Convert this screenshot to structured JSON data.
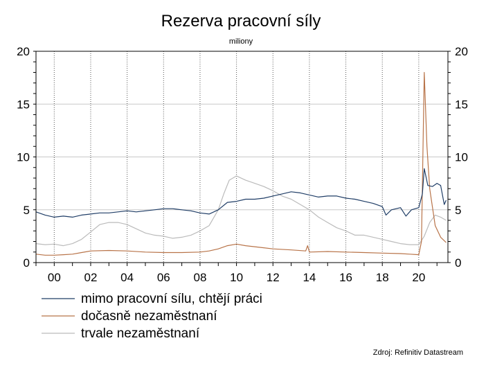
{
  "chart_data": {
    "type": "line",
    "title": "Rezerva pracovní síly",
    "subtitle": "miliony",
    "source": "Zdroj: Refinitiv Datastream",
    "xlim": [
      1999.0,
      2021.6
    ],
    "ylim": [
      0,
      20
    ],
    "y_ticks": [
      0,
      5,
      10,
      15,
      20
    ],
    "y_tick_labels": [
      "0",
      "5",
      "10",
      "15",
      "20"
    ],
    "x_ticks": [
      2000,
      2002,
      2004,
      2006,
      2008,
      2010,
      2012,
      2014,
      2016,
      2018,
      2020
    ],
    "x_tick_labels": [
      "00",
      "02",
      "04",
      "06",
      "08",
      "10",
      "12",
      "14",
      "16",
      "18",
      "20"
    ],
    "grid": {
      "horizontal": true,
      "vertical_dotted": true
    },
    "legend_position": "bottom-left",
    "series": [
      {
        "name": "mimo pracovní sílu, chtějí práci",
        "color": "#1f3d66",
        "x": [
          1999.0,
          1999.5,
          2000.0,
          2000.5,
          2001.0,
          2001.5,
          2002.0,
          2002.5,
          2003.0,
          2003.5,
          2004.0,
          2004.5,
          2005.0,
          2005.5,
          2006.0,
          2006.5,
          2007.0,
          2007.5,
          2008.0,
          2008.5,
          2009.0,
          2009.5,
          2010.0,
          2010.5,
          2011.0,
          2011.5,
          2012.0,
          2012.5,
          2013.0,
          2013.5,
          2014.0,
          2014.5,
          2015.0,
          2015.5,
          2016.0,
          2016.5,
          2017.0,
          2017.5,
          2018.0,
          2018.2,
          2018.5,
          2019.0,
          2019.3,
          2019.6,
          2020.0,
          2020.2,
          2020.3,
          2020.5,
          2020.75,
          2021.0,
          2021.2,
          2021.4,
          2021.5
        ],
        "values": [
          4.8,
          4.5,
          4.3,
          4.4,
          4.3,
          4.5,
          4.6,
          4.7,
          4.7,
          4.8,
          4.9,
          4.8,
          4.9,
          5.0,
          5.1,
          5.1,
          5.0,
          4.9,
          4.7,
          4.6,
          5.0,
          5.7,
          5.8,
          6.0,
          6.0,
          6.1,
          6.3,
          6.5,
          6.7,
          6.6,
          6.4,
          6.2,
          6.3,
          6.3,
          6.1,
          6.0,
          5.8,
          5.6,
          5.3,
          4.5,
          5.0,
          5.2,
          4.4,
          5.0,
          5.2,
          6.5,
          8.9,
          7.3,
          7.2,
          7.5,
          7.3,
          5.5,
          5.9
        ]
      },
      {
        "name": "dočasně nezaměstnaní",
        "color": "#b87348",
        "x": [
          1999.0,
          1999.5,
          2000.0,
          2000.5,
          2001.0,
          2001.5,
          2002.0,
          2003.0,
          2004.0,
          2005.0,
          2006.0,
          2007.0,
          2008.0,
          2008.5,
          2009.0,
          2009.5,
          2010.0,
          2010.5,
          2011.0,
          2012.0,
          2013.0,
          2013.8,
          2013.9,
          2014.0,
          2015.0,
          2016.0,
          2017.0,
          2018.0,
          2019.0,
          2019.5,
          2020.0,
          2020.15,
          2020.3,
          2020.45,
          2020.6,
          2020.9,
          2021.2,
          2021.5
        ],
        "values": [
          0.8,
          0.7,
          0.7,
          0.75,
          0.8,
          0.95,
          1.1,
          1.15,
          1.1,
          1.0,
          0.95,
          0.95,
          1.0,
          1.1,
          1.3,
          1.6,
          1.75,
          1.6,
          1.5,
          1.3,
          1.2,
          1.1,
          1.6,
          1.0,
          1.05,
          1.0,
          0.95,
          0.9,
          0.85,
          0.8,
          0.75,
          2.0,
          18.0,
          11.0,
          7.0,
          3.5,
          2.4,
          1.9
        ]
      },
      {
        "name": "trvale nezaměstnaní",
        "color": "#bbbbbb",
        "x": [
          1999.0,
          1999.5,
          2000.0,
          2000.5,
          2001.0,
          2001.5,
          2002.0,
          2002.5,
          2003.0,
          2003.5,
          2004.0,
          2004.5,
          2005.0,
          2005.5,
          2006.0,
          2006.5,
          2007.0,
          2007.5,
          2008.0,
          2008.5,
          2009.0,
          2009.3,
          2009.6,
          2010.0,
          2010.5,
          2011.0,
          2011.5,
          2012.0,
          2012.5,
          2013.0,
          2013.5,
          2014.0,
          2014.5,
          2015.0,
          2015.5,
          2016.0,
          2016.5,
          2017.0,
          2017.5,
          2018.0,
          2018.5,
          2019.0,
          2019.5,
          2020.0,
          2020.3,
          2020.6,
          2020.9,
          2021.2,
          2021.5
        ],
        "values": [
          1.8,
          1.7,
          1.75,
          1.6,
          1.8,
          2.2,
          2.9,
          3.6,
          3.8,
          3.8,
          3.6,
          3.2,
          2.8,
          2.6,
          2.5,
          2.3,
          2.4,
          2.6,
          3.0,
          3.5,
          5.0,
          6.5,
          7.8,
          8.2,
          7.8,
          7.5,
          7.2,
          6.8,
          6.3,
          6.0,
          5.5,
          5.0,
          4.3,
          3.8,
          3.3,
          3.0,
          2.6,
          2.6,
          2.4,
          2.2,
          2.0,
          1.8,
          1.7,
          1.7,
          2.5,
          3.8,
          4.5,
          4.3,
          4.0
        ]
      }
    ]
  }
}
